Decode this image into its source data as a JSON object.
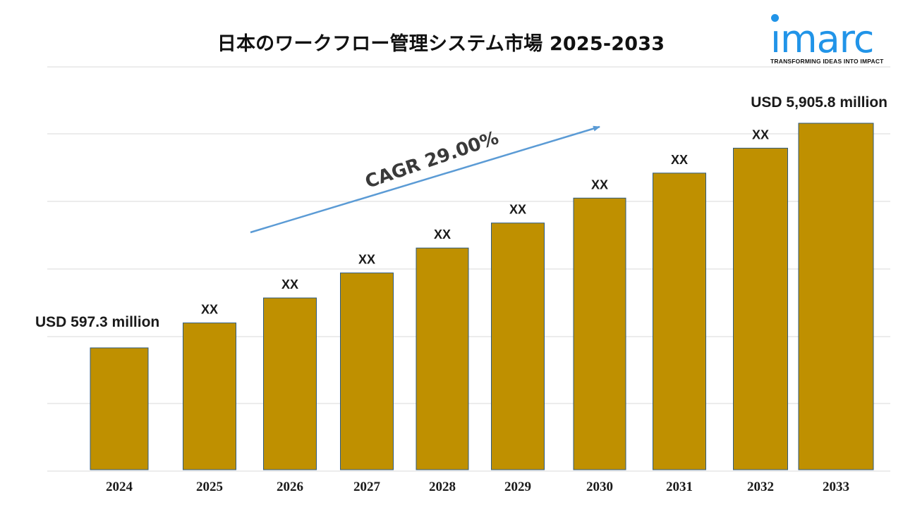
{
  "title": "日本のワークフロー管理システム市場 2025-2033",
  "logo": {
    "word": "ımarc",
    "tagline": "TRANSFORMING IDEAS INTO IMPACT",
    "color": "#2194e8"
  },
  "colors": {
    "bar": "#bf9000",
    "bar_edge": "#2d5a80",
    "arrow": "#5b9bd5",
    "grid": "#d9d9d9"
  },
  "chart_data": {
    "type": "bar",
    "title": "日本のワークフロー管理システム市場 2025-2033",
    "xlabel": "",
    "ylabel": "",
    "categories": [
      "2024",
      "2025",
      "2026",
      "2027",
      "2028",
      "2029",
      "2030",
      "2031",
      "2032",
      "2033"
    ],
    "values": [
      597.3,
      770.5,
      994.0,
      1282.2,
      1654.1,
      2133.8,
      2752.6,
      3550.9,
      4580.6,
      5905.8
    ],
    "bar_labels": [
      "",
      "XX",
      "XX",
      "XX",
      "XX",
      "XX",
      "XX",
      "XX",
      "XX",
      ""
    ],
    "annotations": {
      "start_value": "USD 597.3 million",
      "end_value": "USD 5,905.8 million",
      "cagr": "CAGR 29.00%"
    },
    "scale": "log",
    "grid": true,
    "legend": "none"
  }
}
